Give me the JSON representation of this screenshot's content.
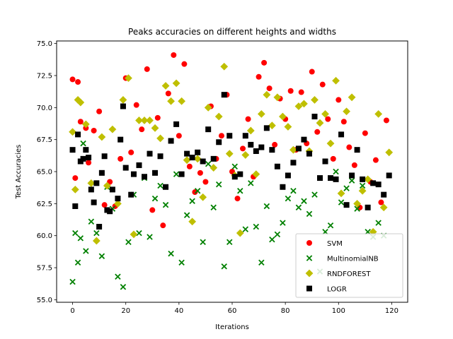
{
  "chart_data": {
    "type": "scatter",
    "title": "Peaks accuracies on different heights and widths",
    "xlabel": "Iterations",
    "ylabel": "Test Accuracies",
    "xlim": [
      -6,
      126
    ],
    "ylim": [
      54.8,
      75.2
    ],
    "xticks": [
      0,
      20,
      40,
      60,
      80,
      100,
      120
    ],
    "yticks": [
      55.0,
      57.5,
      60.0,
      62.5,
      65.0,
      67.5,
      70.0,
      72.5,
      75.0
    ],
    "ytick_labels": [
      "55.0",
      "57.5",
      "60.0",
      "62.5",
      "65.0",
      "67.5",
      "70.0",
      "72.5",
      "75.0"
    ],
    "grid": false,
    "legend_position": "lower right",
    "series": [
      {
        "name": "SVM",
        "marker": "circle",
        "color": "#ff0000",
        "x": [
          0,
          1,
          2,
          3,
          5,
          6,
          8,
          10,
          12,
          14,
          16,
          18,
          20,
          22,
          24,
          26,
          28,
          30,
          32,
          34,
          36,
          38,
          40,
          42,
          44,
          46,
          48,
          50,
          52,
          54,
          56,
          58,
          60,
          62,
          64,
          66,
          68,
          70,
          72,
          74,
          76,
          78,
          80,
          82,
          84,
          86,
          88,
          90,
          92,
          94,
          96,
          98,
          100,
          102,
          104,
          106,
          108,
          110,
          112,
          114,
          116,
          118
        ],
        "y": [
          72.2,
          64.5,
          72.0,
          68.9,
          68.4,
          65.7,
          68.2,
          69.7,
          62.4,
          64.2,
          62.3,
          66.0,
          72.3,
          66.5,
          70.2,
          68.3,
          73.0,
          62.0,
          69.2,
          60.8,
          71.1,
          74.1,
          67.8,
          73.4,
          65.4,
          63.4,
          64.9,
          64.2,
          70.1,
          66.0,
          67.8,
          71.0,
          65.0,
          62.9,
          66.8,
          69.1,
          64.6,
          72.4,
          73.5,
          71.5,
          67.1,
          70.7,
          69.1,
          71.3,
          66.7,
          71.2,
          67.2,
          72.8,
          68.1,
          71.8,
          69.1,
          66.0,
          70.6,
          68.9,
          66.9,
          65.5,
          62.2,
          68.0,
          64.2,
          65.9,
          62.6,
          69.0
        ]
      },
      {
        "name": "MultinomialNB",
        "marker": "x",
        "color": "#008000",
        "x": [
          0,
          1,
          2,
          3,
          4,
          5,
          7,
          9,
          11,
          13,
          15,
          17,
          19,
          21,
          23,
          25,
          27,
          29,
          31,
          33,
          35,
          37,
          39,
          41,
          43,
          45,
          47,
          49,
          51,
          53,
          55,
          57,
          59,
          61,
          63,
          65,
          67,
          69,
          71,
          73,
          75,
          77,
          79,
          81,
          83,
          85,
          87,
          89,
          91,
          93,
          95,
          97,
          99,
          101,
          103,
          105,
          107,
          109,
          111,
          113,
          115,
          117
        ],
        "y": [
          56.4,
          60.2,
          57.9,
          59.8,
          67.2,
          58.8,
          61.1,
          60.2,
          58.4,
          63.8,
          62.1,
          56.8,
          56.0,
          59.5,
          63.2,
          60.2,
          64.5,
          59.9,
          62.9,
          63.9,
          62.4,
          58.6,
          64.8,
          57.9,
          61.6,
          62.7,
          63.5,
          59.5,
          65.6,
          62.2,
          64.0,
          57.6,
          59.5,
          65.4,
          63.5,
          60.5,
          64.1,
          60.7,
          57.9,
          62.3,
          59.7,
          60.1,
          61.0,
          62.9,
          63.5,
          62.2,
          62.7,
          61.7,
          63.2,
          57.2,
          60.3,
          60.8,
          65.0,
          62.6,
          63.7,
          64.3,
          62.1,
          63.9,
          60.3,
          59.9,
          61.0,
          60.0
        ]
      },
      {
        "name": "RNDFOREST",
        "marker": "diamond",
        "color": "#bfbf00",
        "x": [
          0,
          1,
          2,
          3,
          5,
          7,
          9,
          11,
          13,
          15,
          17,
          19,
          21,
          23,
          25,
          27,
          29,
          31,
          33,
          35,
          37,
          39,
          41,
          43,
          45,
          47,
          49,
          51,
          53,
          55,
          57,
          59,
          61,
          63,
          65,
          67,
          69,
          71,
          73,
          75,
          77,
          79,
          81,
          83,
          85,
          87,
          89,
          91,
          93,
          95,
          97,
          99,
          101,
          103,
          105,
          107,
          109,
          111,
          113,
          115,
          117,
          119
        ],
        "y": [
          68.1,
          63.6,
          70.6,
          70.4,
          68.7,
          64.1,
          59.6,
          67.7,
          63.9,
          68.3,
          62.5,
          70.6,
          72.3,
          60.1,
          69.0,
          69.0,
          69.0,
          68.4,
          67.6,
          71.7,
          70.5,
          71.9,
          70.5,
          65.9,
          61.1,
          66.0,
          63.0,
          70.0,
          65.3,
          69.3,
          73.2,
          66.4,
          64.7,
          60.2,
          66.3,
          68.2,
          64.8,
          69.5,
          71.0,
          68.6,
          70.8,
          69.3,
          68.5,
          66.7,
          70.1,
          70.3,
          66.6,
          70.6,
          68.8,
          69.5,
          67.2,
          72.1,
          63.3,
          69.7,
          70.8,
          62.5,
          63.5,
          64.4,
          60.3,
          69.5,
          62.2,
          66.5
        ]
      },
      {
        "name": "LOGR",
        "marker": "square",
        "color": "#000000",
        "x": [
          0,
          1,
          2,
          3,
          4,
          5,
          6,
          7,
          8,
          9,
          10,
          11,
          12,
          13,
          14,
          15,
          17,
          18,
          19,
          20,
          22,
          23,
          25,
          27,
          29,
          31,
          33,
          35,
          37,
          39,
          41,
          43,
          45,
          47,
          49,
          51,
          53,
          55,
          57,
          59,
          61,
          63,
          65,
          67,
          69,
          71,
          73,
          75,
          77,
          79,
          81,
          83,
          85,
          87,
          89,
          91,
          93,
          95,
          97,
          99,
          101,
          103,
          105,
          107,
          109,
          111,
          113,
          115,
          117,
          119
        ],
        "y": [
          66.7,
          62.3,
          67.9,
          65.8,
          66.0,
          66.7,
          66.1,
          63.6,
          62.6,
          64.1,
          60.7,
          64.9,
          66.2,
          62.0,
          61.9,
          63.6,
          62.9,
          67.5,
          70.1,
          65.3,
          63.2,
          64.8,
          65.5,
          64.6,
          66.4,
          64.9,
          66.2,
          63.8,
          67.4,
          68.7,
          64.8,
          66.4,
          66.1,
          66.5,
          65.8,
          68.3,
          66.0,
          67.3,
          71.0,
          67.8,
          64.6,
          64.8,
          67.8,
          67.1,
          66.6,
          66.9,
          68.4,
          66.7,
          65.4,
          63.8,
          64.7,
          65.7,
          66.8,
          67.5,
          66.4,
          69.3,
          64.5,
          65.8,
          64.5,
          64.4,
          67.9,
          62.4,
          64.7,
          66.7,
          64.4,
          62.2,
          64.1,
          64.0,
          63.2,
          64.7
        ]
      }
    ]
  }
}
